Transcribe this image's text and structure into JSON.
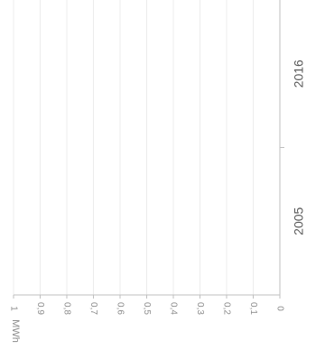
{
  "chart_data": {
    "type": "bar",
    "orientation": "horizontal",
    "categories": [
      "2005",
      "2016"
    ],
    "values": [
      0,
      0
    ],
    "unit_label": "MWh",
    "xlim": [
      0,
      1
    ],
    "ticks": [
      0,
      0.1,
      0.2,
      0.3,
      0.4,
      0.5,
      0.6,
      0.7,
      0.8,
      0.9,
      1
    ],
    "tick_labels": [
      "0",
      "0,1",
      "0,2",
      "0,3",
      "0,4",
      "0,5",
      "0,6",
      "0,7",
      "0,8",
      "0,9",
      "1"
    ],
    "grid": true
  },
  "colors": {
    "grid": "#ececec",
    "axis": "#bfbfbf",
    "tick_text": "#8c8c8c",
    "category_text": "#595959"
  }
}
